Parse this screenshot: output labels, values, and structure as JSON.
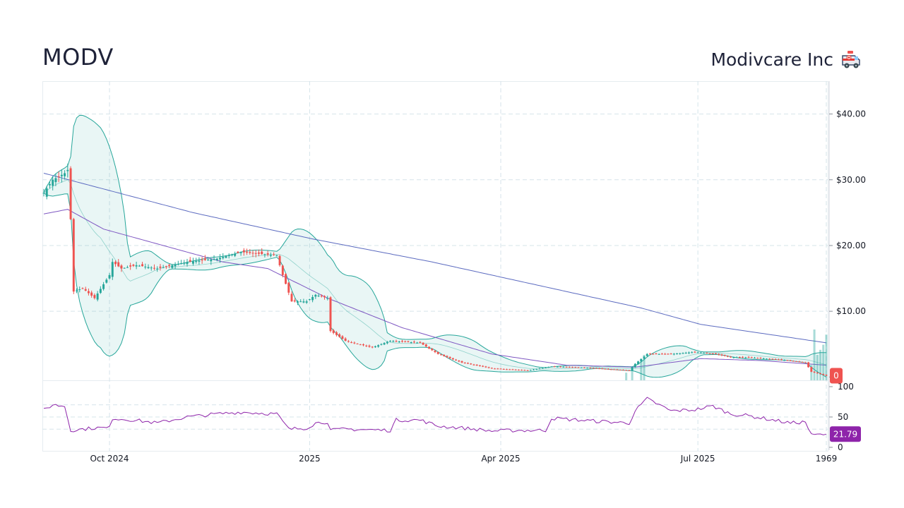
{
  "header": {
    "ticker": "MODV",
    "company": "Modivcare Inc",
    "icon": "ambulance-icon"
  },
  "colors": {
    "up": "#26a69a",
    "down": "#ef5350",
    "bollinger": "#26a69a",
    "sma_long": "#5c6bc0",
    "sma_mid": "#7e57c2",
    "rsi": "#8e24aa",
    "grid": "#d6e4ea"
  },
  "chart_data": {
    "type": "candlestick",
    "price_axis": {
      "ticks": [
        {
          "value": 40,
          "label": "$40.00"
        },
        {
          "value": 30,
          "label": "$30.00"
        },
        {
          "value": 20,
          "label": "$20.00"
        },
        {
          "value": 10,
          "label": "$10.00"
        },
        {
          "value": 0,
          "label": "0"
        }
      ],
      "range": [
        -0.5,
        45
      ],
      "last_price_label": "0"
    },
    "rsi_axis": {
      "ticks": [
        {
          "value": 100,
          "label": "100"
        },
        {
          "value": 50,
          "label": "50"
        },
        {
          "value": 0,
          "label": "0"
        }
      ],
      "guides": [
        70,
        30
      ],
      "last_value_label": "21.79"
    },
    "x_axis": {
      "labels": [
        {
          "label": "Oct 2024",
          "index": 22
        },
        {
          "label": "2025",
          "index": 89
        },
        {
          "label": "Apr 2025",
          "index": 153
        },
        {
          "label": "Jul 2025",
          "index": 219
        },
        {
          "label": "1969",
          "index": 262
        }
      ],
      "count": 263
    },
    "price_keys": [
      [
        0,
        28
      ],
      [
        3,
        30
      ],
      [
        7,
        31
      ],
      [
        8,
        31.5
      ],
      [
        9,
        24
      ],
      [
        10,
        13
      ],
      [
        13,
        13.5
      ],
      [
        17,
        12
      ],
      [
        22,
        15.5
      ],
      [
        23,
        17.5
      ],
      [
        26,
        16.5
      ],
      [
        31,
        17
      ],
      [
        38,
        16.5
      ],
      [
        48,
        17.5
      ],
      [
        58,
        18
      ],
      [
        66,
        19
      ],
      [
        78,
        18.5
      ],
      [
        80,
        15.5
      ],
      [
        83,
        11.5
      ],
      [
        88,
        11.5
      ],
      [
        91,
        12.5
      ],
      [
        95,
        12
      ],
      [
        96,
        7
      ],
      [
        101,
        5.5
      ],
      [
        110,
        4.5
      ],
      [
        116,
        5.5
      ],
      [
        126,
        5.2
      ],
      [
        132,
        3.5
      ],
      [
        140,
        2.2
      ],
      [
        150,
        1.3
      ],
      [
        162,
        1.0
      ],
      [
        170,
        1.6
      ],
      [
        182,
        1.4
      ],
      [
        196,
        1.0
      ],
      [
        198,
        2
      ],
      [
        202,
        3.5
      ],
      [
        210,
        3.5
      ],
      [
        218,
        3.8
      ],
      [
        225,
        3.5
      ],
      [
        230,
        3.0
      ],
      [
        236,
        3.0
      ],
      [
        250,
        2.5
      ],
      [
        255,
        2.2
      ],
      [
        257,
        0.8
      ],
      [
        262,
        0.2
      ]
    ],
    "rsi_keys": [
      [
        0,
        62
      ],
      [
        3,
        70
      ],
      [
        7,
        68
      ],
      [
        9,
        28
      ],
      [
        13,
        30
      ],
      [
        17,
        32
      ],
      [
        22,
        32
      ],
      [
        23,
        48
      ],
      [
        30,
        45
      ],
      [
        38,
        40
      ],
      [
        48,
        50
      ],
      [
        58,
        55
      ],
      [
        66,
        58
      ],
      [
        78,
        55
      ],
      [
        82,
        30
      ],
      [
        88,
        32
      ],
      [
        91,
        40
      ],
      [
        95,
        42
      ],
      [
        96,
        28
      ],
      [
        101,
        30
      ],
      [
        116,
        28
      ],
      [
        118,
        45
      ],
      [
        126,
        45
      ],
      [
        132,
        35
      ],
      [
        140,
        32
      ],
      [
        150,
        27
      ],
      [
        158,
        28
      ],
      [
        168,
        28
      ],
      [
        170,
        48
      ],
      [
        182,
        44
      ],
      [
        196,
        40
      ],
      [
        198,
        60
      ],
      [
        202,
        80
      ],
      [
        210,
        60
      ],
      [
        218,
        62
      ],
      [
        224,
        68
      ],
      [
        230,
        55
      ],
      [
        236,
        52
      ],
      [
        250,
        40
      ],
      [
        255,
        42
      ],
      [
        257,
        20
      ],
      [
        262,
        21.79
      ]
    ],
    "sma_long_keys": [
      [
        0,
        31
      ],
      [
        50,
        25
      ],
      [
        90,
        21
      ],
      [
        130,
        17.5
      ],
      [
        150,
        15.5
      ],
      [
        180,
        12.5
      ],
      [
        200,
        10.5
      ],
      [
        220,
        8
      ],
      [
        262,
        5.2
      ]
    ],
    "sma_mid_keys": [
      [
        0,
        24.8
      ],
      [
        8,
        25.5
      ],
      [
        20,
        22.5
      ],
      [
        40,
        20
      ],
      [
        60,
        17.5
      ],
      [
        75,
        16.5
      ],
      [
        95,
        12
      ],
      [
        120,
        7.5
      ],
      [
        150,
        3.5
      ],
      [
        175,
        1.8
      ],
      [
        198,
        1.5
      ],
      [
        220,
        2.8
      ],
      [
        240,
        2.5
      ],
      [
        262,
        1.8
      ]
    ],
    "volume_spikes": [
      [
        195,
        0.15
      ],
      [
        197,
        0.25
      ],
      [
        200,
        0.4
      ],
      [
        201,
        0.5
      ],
      [
        257,
        0.3
      ],
      [
        258,
        1.0
      ],
      [
        259,
        0.5
      ],
      [
        260,
        0.6
      ],
      [
        261,
        0.7
      ],
      [
        262,
        0.9
      ]
    ]
  }
}
